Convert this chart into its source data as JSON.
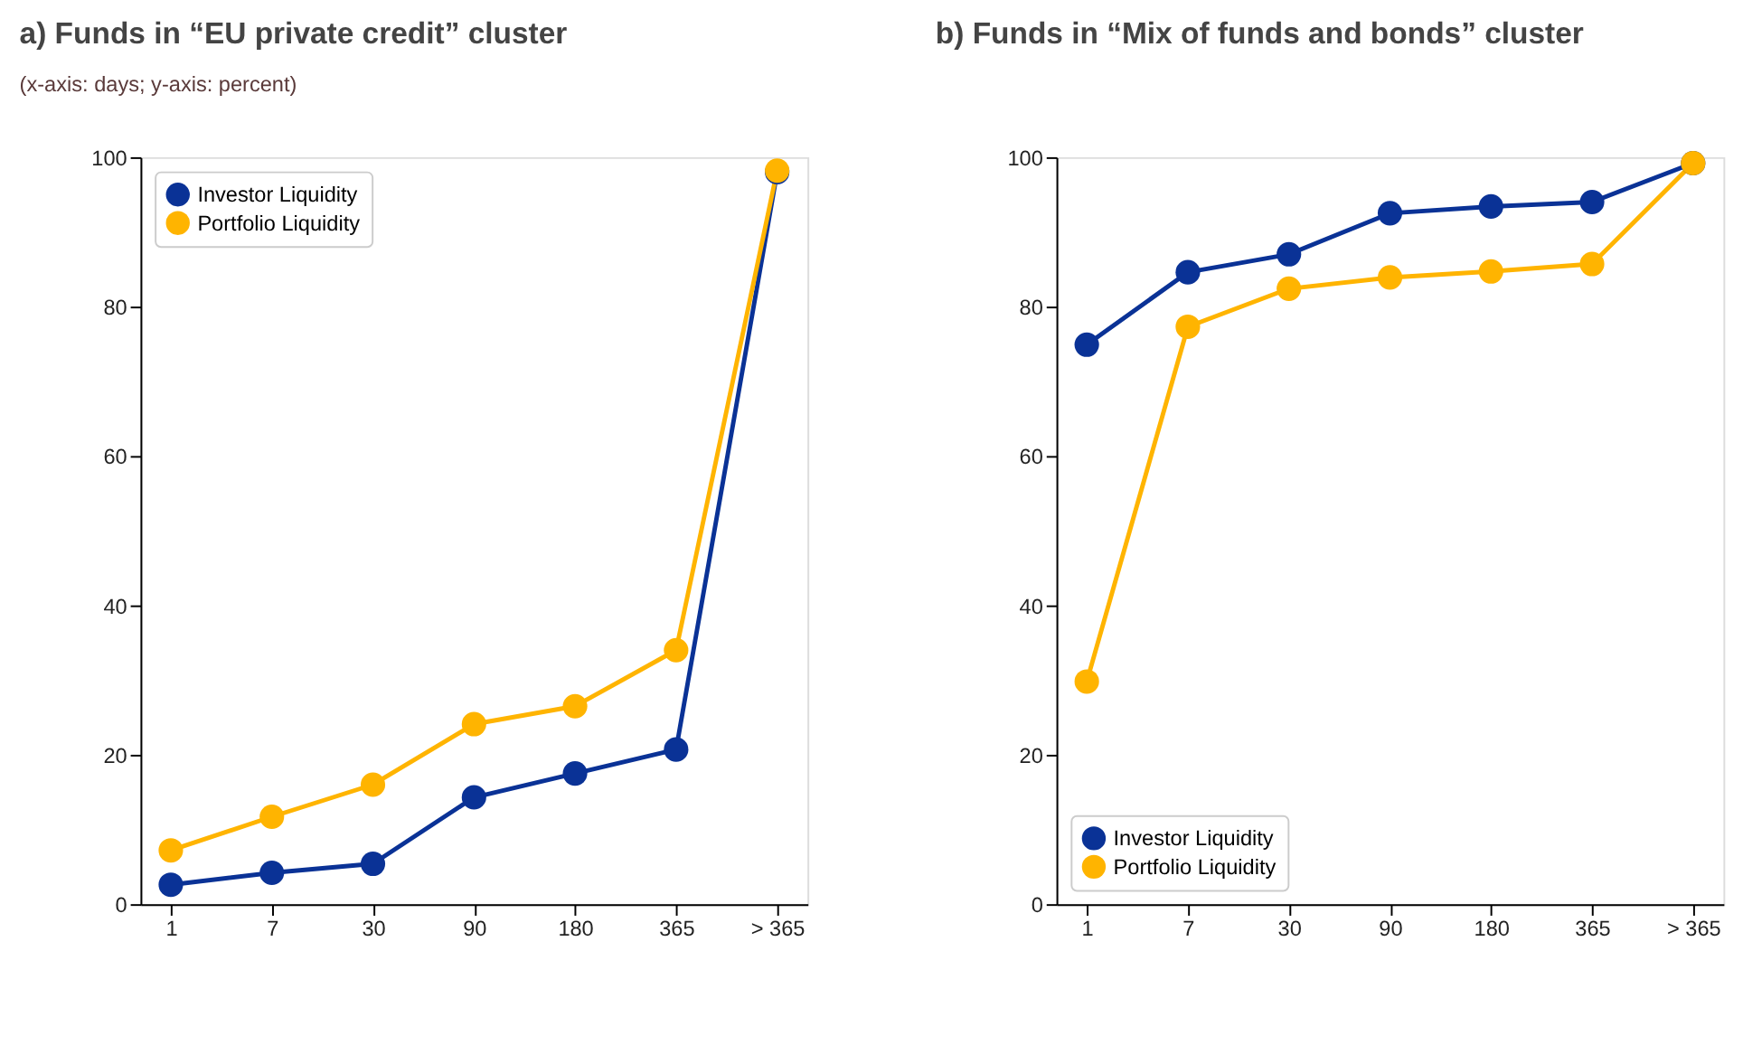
{
  "chart_data": [
    {
      "type": "line",
      "title": "a) Funds in “EU private credit” cluster",
      "annotations": [
        "(x-axis: days; y-axis: percent)"
      ],
      "categories": [
        "1",
        "7",
        "30",
        "90",
        "180",
        "365",
        "> 365"
      ],
      "ylim": [
        0,
        100
      ],
      "yticks": [
        0,
        20,
        40,
        60,
        80,
        100
      ],
      "grid": false,
      "legend": "top left",
      "marker": "circle",
      "line_style": "solid",
      "series": [
        {
          "name": "Investor Liquidity",
          "color": "#0a3296",
          "values": [
            2.6,
            4.2,
            5.4,
            14.3,
            17.5,
            20.7,
            98
          ]
        },
        {
          "name": "Portfolio Liquidity",
          "color": "#ffb400",
          "values": [
            7.2,
            11.7,
            16,
            24.1,
            26.5,
            34,
            98.2
          ]
        }
      ]
    },
    {
      "type": "line",
      "title": "b) Funds in “Mix of funds and bonds” cluster",
      "categories": [
        "1",
        "7",
        "30",
        "90",
        "180",
        "365",
        "> 365"
      ],
      "ylim": [
        0,
        100
      ],
      "yticks": [
        0,
        20,
        40,
        60,
        80,
        100
      ],
      "grid": false,
      "legend": "bottom left",
      "marker": "circle",
      "line_style": "solid",
      "series": [
        {
          "name": "Investor Liquidity",
          "color": "#0a3296",
          "values": [
            74.9,
            84.6,
            87,
            92.5,
            93.4,
            94,
            99.2
          ]
        },
        {
          "name": "Portfolio Liquidity",
          "color": "#ffb400",
          "values": [
            29.8,
            77.3,
            82.4,
            83.9,
            84.7,
            85.7,
            99.2
          ]
        }
      ]
    }
  ]
}
